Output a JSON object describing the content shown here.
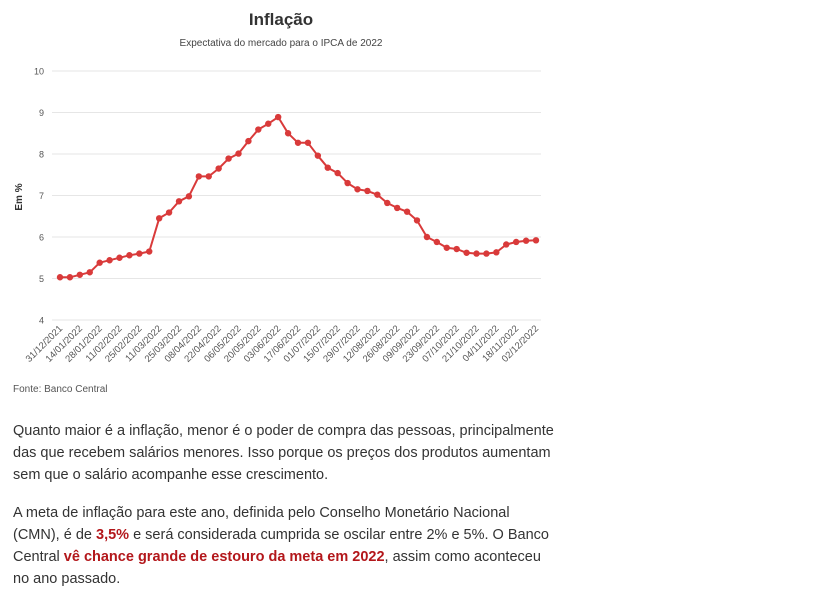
{
  "chart_data": {
    "type": "line",
    "title": "Inflação",
    "subtitle": "Expectativa do mercado para o IPCA de 2022",
    "ylabel": "Em %",
    "xlabel": "",
    "ylim": [
      4,
      10
    ],
    "yticks": [
      4,
      5,
      6,
      7,
      8,
      9,
      10
    ],
    "grid": true,
    "legend": "none",
    "x_tick_labels": [
      "31/12/2021",
      "14/01/2022",
      "28/01/2022",
      "11/02/2022",
      "25/02/2022",
      "11/03/2022",
      "25/03/2022",
      "08/04/2022",
      "22/04/2022",
      "06/05/2022",
      "20/05/2022",
      "03/06/2022",
      "17/06/2022",
      "01/07/2022",
      "15/07/2022",
      "29/07/2022",
      "12/08/2022",
      "26/08/2022",
      "09/09/2022",
      "23/09/2022",
      "07/10/2022",
      "21/10/2022",
      "04/11/2022",
      "18/11/2022",
      "02/12/2022"
    ],
    "series": [
      {
        "name": "IPCA 2022",
        "color": "#d93a3a",
        "values": [
          5.03,
          5.03,
          5.09,
          5.15,
          5.38,
          5.44,
          5.5,
          5.56,
          5.6,
          5.65,
          6.45,
          6.59,
          6.86,
          6.98,
          7.46,
          7.46,
          7.65,
          7.89,
          8.01,
          8.31,
          8.59,
          8.73,
          8.89,
          8.5,
          8.27,
          8.27,
          7.96,
          7.67,
          7.54,
          7.3,
          7.15,
          7.11,
          7.02,
          6.82,
          6.7,
          6.61,
          6.4,
          6.0,
          5.88,
          5.74,
          5.71,
          5.62,
          5.6,
          5.6,
          5.63,
          5.82,
          5.88,
          5.91,
          5.92
        ]
      }
    ]
  },
  "source": "Fonte: Banco Central",
  "paragraph1": "Quanto maior é a inflação, menor é o poder de compra das pessoas, principalmente das que recebem salários menores. Isso porque os preços dos produtos aumentam sem que o salário acompanhe esse crescimento.",
  "paragraph2": {
    "part1": "A meta de inflação para este ano, definida pelo Conselho Monetário Nacional (CMN), é de ",
    "highlight1": "3,5%",
    "part2": " e será considerada cumprida se oscilar entre 2% e 5%. O Banco Central ",
    "highlight2": "vê chance grande de estouro da meta em 2022",
    "part3": ", assim como aconteceu no ano passado."
  },
  "colors": {
    "line": "#d93a3a",
    "grid": "#e6e6e6",
    "axis_text": "#555555",
    "highlight": "#b3171b"
  }
}
